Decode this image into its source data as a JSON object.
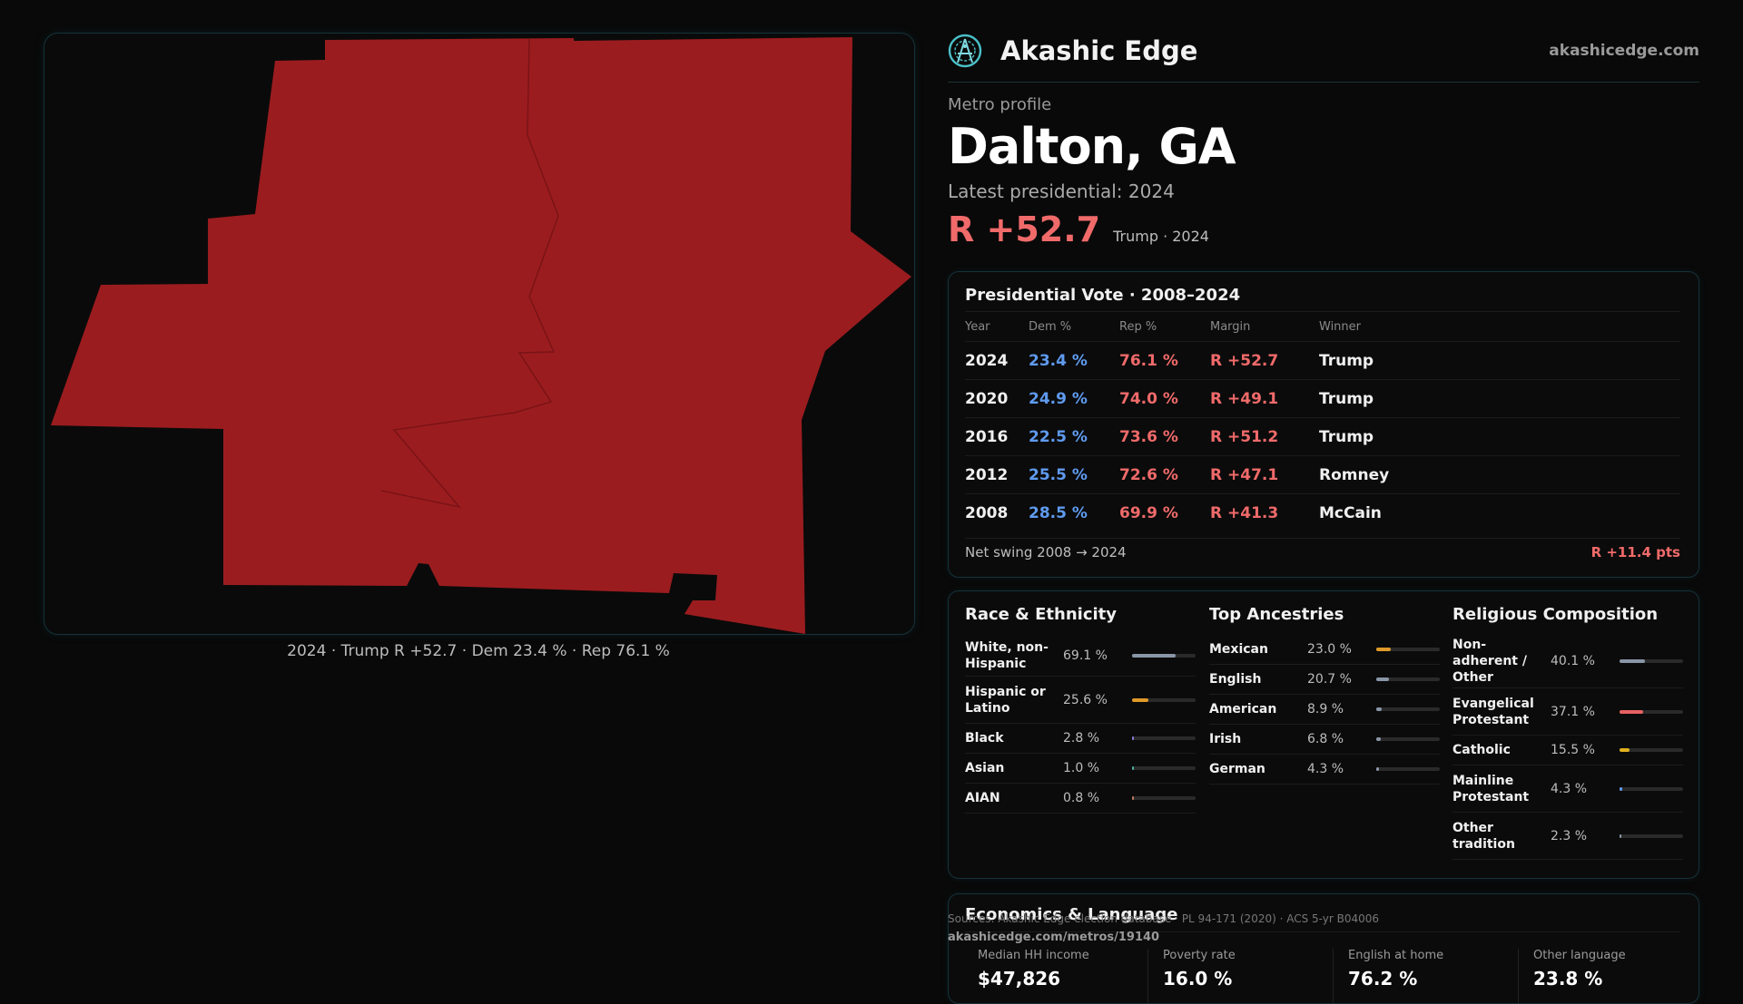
{
  "brand": {
    "name": "Akashic Edge",
    "url": "akashicedge.com"
  },
  "map": {
    "fill_color": "#9b1c1f",
    "caption": "2024 · Trump R +52.7 · Dem 23.4 % · Rep 76.1 %"
  },
  "profile": {
    "eyebrow": "Metro profile",
    "title": "Dalton, GA",
    "latest_label": "Latest presidential: 2024",
    "margin": "R +52.7",
    "margin_note": "Trump · 2024"
  },
  "presidential": {
    "title": "Presidential Vote · 2008–2024",
    "headers": {
      "year": "Year",
      "dem": "Dem %",
      "rep": "Rep %",
      "margin": "Margin",
      "winner": "Winner"
    },
    "rows": [
      {
        "year": "2024",
        "dem": "23.4 %",
        "rep": "76.1 %",
        "margin": "R +52.7",
        "winner": "Trump"
      },
      {
        "year": "2020",
        "dem": "24.9 %",
        "rep": "74.0 %",
        "margin": "R +49.1",
        "winner": "Trump"
      },
      {
        "year": "2016",
        "dem": "22.5 %",
        "rep": "73.6 %",
        "margin": "R +51.2",
        "winner": "Trump"
      },
      {
        "year": "2012",
        "dem": "25.5 %",
        "rep": "72.6 %",
        "margin": "R +47.1",
        "winner": "Romney"
      },
      {
        "year": "2008",
        "dem": "28.5 %",
        "rep": "69.9 %",
        "margin": "R +41.3",
        "winner": "McCain"
      }
    ],
    "swing_label": "Net swing 2008 → 2024",
    "swing_value": "R +11.4 pts"
  },
  "race": {
    "title": "Race & Ethnicity",
    "items": [
      {
        "label": "White, non-Hispanic",
        "value": "69.1 %",
        "fraction": 0.691,
        "color": "#8a96a8"
      },
      {
        "label": "Hispanic or Latino",
        "value": "25.6 %",
        "fraction": 0.256,
        "color": "#e09a2a"
      },
      {
        "label": "Black",
        "value": "2.8 %",
        "fraction": 0.028,
        "color": "#8a7ad8"
      },
      {
        "label": "Asian",
        "value": "1.0 %",
        "fraction": 0.01,
        "color": "#4ab0a0"
      },
      {
        "label": "AIAN",
        "value": "0.8 %",
        "fraction": 0.008,
        "color": "#c07a5a"
      }
    ]
  },
  "ancestries": {
    "title": "Top Ancestries",
    "items": [
      {
        "label": "Mexican",
        "value": "23.0 %",
        "fraction": 0.23,
        "color": "#e09a2a"
      },
      {
        "label": "English",
        "value": "20.7 %",
        "fraction": 0.207,
        "color": "#8a96a8"
      },
      {
        "label": "American",
        "value": "8.9 %",
        "fraction": 0.089,
        "color": "#8a96a8"
      },
      {
        "label": "Irish",
        "value": "6.8 %",
        "fraction": 0.068,
        "color": "#8a96a8"
      },
      {
        "label": "German",
        "value": "4.3 %",
        "fraction": 0.043,
        "color": "#8a96a8"
      }
    ]
  },
  "religion": {
    "title": "Religious Composition",
    "items": [
      {
        "label": "Non-adherent / Other",
        "value": "40.1 %",
        "fraction": 0.401,
        "color": "#8a96a8"
      },
      {
        "label": "Evangelical Protestant",
        "value": "37.1 %",
        "fraction": 0.371,
        "color": "#e86060"
      },
      {
        "label": "Catholic",
        "value": "15.5 %",
        "fraction": 0.155,
        "color": "#e0b020"
      },
      {
        "label": "Mainline Protestant",
        "value": "4.3 %",
        "fraction": 0.043,
        "color": "#5f9bf0"
      },
      {
        "label": "Other tradition",
        "value": "2.3 %",
        "fraction": 0.023,
        "color": "#8a96a8"
      }
    ]
  },
  "economics": {
    "title": "Economics & Language",
    "items": [
      {
        "label": "Median HH income",
        "value": "$47,826"
      },
      {
        "label": "Poverty rate",
        "value": "16.0 %"
      },
      {
        "label": "English at home",
        "value": "76.2 %"
      },
      {
        "label": "Other language",
        "value": "23.8 %"
      }
    ]
  },
  "footer": {
    "sources": "Sources: Akashic Edge election database · PL 94-171 (2020) · ACS 5-yr B04006",
    "url": "akashicedge.com/metros/19140"
  }
}
